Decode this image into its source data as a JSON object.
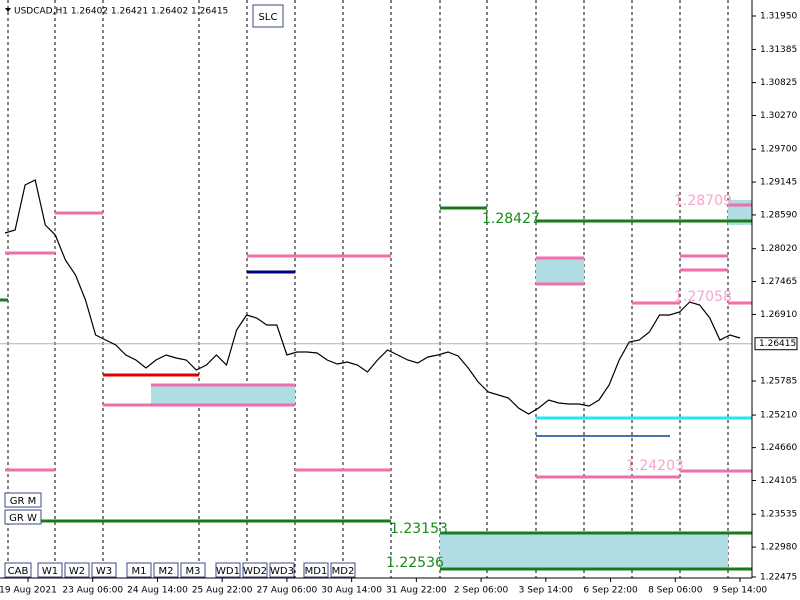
{
  "header": {
    "title": "USDCAD,H1  1.26402 1.26421 1.26402 1.26415"
  },
  "buttons": {
    "side": [
      "GR M",
      "GR W"
    ],
    "bottom": [
      "CAB",
      "W1",
      "W2",
      "W3",
      "M1",
      "M2",
      "M3",
      "WD1",
      "WD2",
      "WD3",
      "MD1",
      "MD2"
    ],
    "top": "SLC"
  },
  "chart_data": {
    "type": "line",
    "color": "#000000",
    "values": [
      1.28285,
      1.28336,
      1.29096,
      1.2918,
      1.2842,
      1.28251,
      1.27829,
      1.27576,
      1.27153,
      1.26562,
      1.26478,
      1.26393,
      1.26224,
      1.2614,
      1.26005,
      1.2614,
      1.26224,
      1.26174,
      1.2614,
      1.25971,
      1.26055,
      1.26224,
      1.26055,
      1.26647,
      1.269,
      1.2685,
      1.26731,
      1.26731,
      1.26224,
      1.26275,
      1.26275,
      1.26258,
      1.2614,
      1.26072,
      1.26106,
      1.26055,
      1.25937,
      1.2614,
      1.26309,
      1.26224,
      1.2614,
      1.26089,
      1.26191,
      1.26224,
      1.26275,
      1.26207,
      1.26005,
      1.25768,
      1.256,
      1.25549,
      1.25498,
      1.25329,
      1.25228,
      1.25329,
      1.25464,
      1.25414,
      1.25397,
      1.25397,
      1.25363,
      1.25464,
      1.25718,
      1.2614,
      1.26444,
      1.26478,
      1.26613,
      1.269,
      1.269,
      1.2695,
      1.27119,
      1.27069,
      1.2685,
      1.26478,
      1.26562,
      1.26511
    ],
    "ylim": [
      1.22475,
      1.3195
    ],
    "yticks": [
      {
        "value": 1.3195,
        "label": "1.31950"
      },
      1.31385,
      1.30825,
      {
        "value": 1.3027,
        "label": "1.30270"
      },
      {
        "value": 1.297,
        "label": "1.29700"
      },
      1.29145,
      {
        "value": 1.2859,
        "label": "1.28590"
      },
      {
        "value": 1.2802,
        "label": "1.28020"
      },
      1.27465,
      {
        "value": 1.2691,
        "label": "1.26910"
      },
      1.25785,
      {
        "value": 1.2521,
        "label": "1.25210"
      },
      {
        "value": 1.2466,
        "label": "1.24660"
      },
      1.24105,
      1.23535,
      {
        "value": 1.2298,
        "label": "1.22980"
      },
      1.22475
    ],
    "current_price": {
      "value": 1.26415,
      "label": "1.26415"
    },
    "x_labels": [
      "19 Aug 2021",
      "23 Aug 06:00",
      "24 Aug 14:00",
      "25 Aug 22:00",
      "27 Aug 06:00",
      "30 Aug 14:00",
      "31 Aug 22:00",
      "2 Sep 06:00",
      "3 Sep 14:00",
      "6 Sep 22:00",
      "8 Sep 06:00",
      "9 Sep 14:00"
    ],
    "annotations": [
      {
        "text": "1.28709",
        "color": "#f4a6cc"
      },
      {
        "text": "1.28427",
        "color": "#1a8a1a"
      },
      {
        "text": "1.27058",
        "color": "#f4a6cc"
      },
      {
        "text": "1.24203",
        "color": "#f4a6cc"
      },
      {
        "text": "1.23153",
        "color": "#1a8a1a"
      },
      {
        "text": "1.22536",
        "color": "#1a8a1a"
      }
    ]
  }
}
